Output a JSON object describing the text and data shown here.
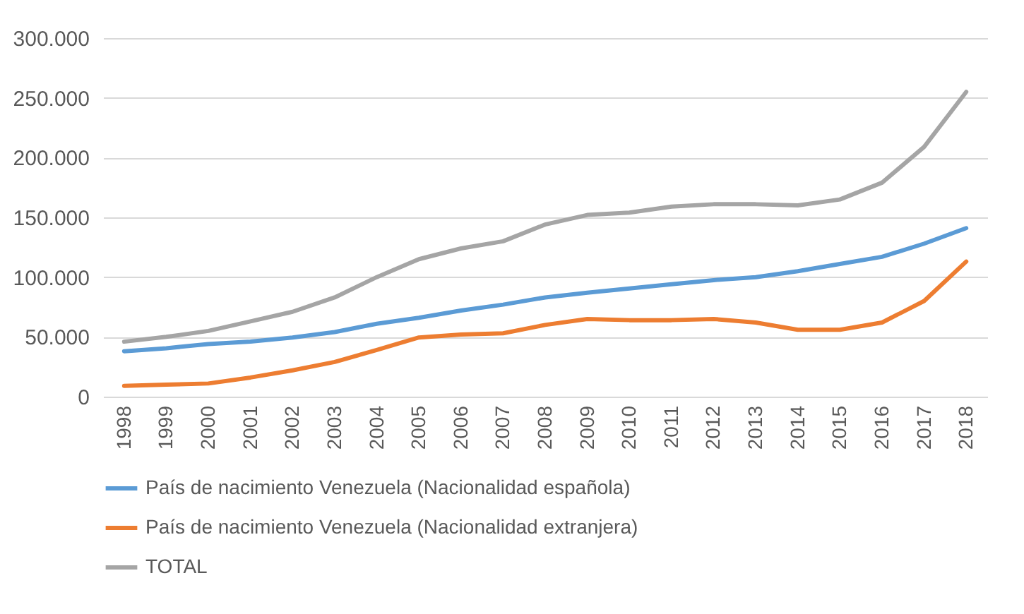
{
  "chart_data": {
    "type": "line",
    "categories": [
      "1998",
      "1999",
      "2000",
      "2001",
      "2002",
      "2003",
      "2004",
      "2005",
      "2006",
      "2007",
      "2008",
      "2009",
      "2010",
      "2011",
      "2012",
      "2013",
      "2014",
      "2015",
      "2016",
      "2017",
      "2018"
    ],
    "series": [
      {
        "name": "País de nacimiento Venezuela (Nacionalidad española)",
        "color": "#5b9bd5",
        "values": [
          38000,
          40500,
          44000,
          46000,
          49500,
          54000,
          61000,
          66000,
          72000,
          77000,
          83000,
          87000,
          90500,
          94000,
          97500,
          100000,
          105000,
          111000,
          117000,
          128000,
          141000
        ]
      },
      {
        "name": "País de nacimiento Venezuela (Nacionalidad extranjera)",
        "color": "#ed7d31",
        "values": [
          9000,
          10000,
          11000,
          16000,
          22000,
          29000,
          39000,
          49500,
          52000,
          53000,
          60000,
          65000,
          64000,
          64000,
          65000,
          62000,
          56000,
          56000,
          62000,
          80000,
          113000
        ]
      },
      {
        "name": "TOTAL",
        "color": "#a5a5a5",
        "values": [
          46000,
          50000,
          55000,
          63000,
          71000,
          83000,
          100000,
          115000,
          124000,
          130000,
          144000,
          152000,
          154000,
          159000,
          161000,
          161000,
          160000,
          165000,
          179000,
          209000,
          255000
        ]
      }
    ],
    "ylim": [
      0,
      300000
    ],
    "yticks": [
      {
        "value": 0,
        "label": "0"
      },
      {
        "value": 50000,
        "label": "50.000"
      },
      {
        "value": 100000,
        "label": "100.000"
      },
      {
        "value": 150000,
        "label": "150.000"
      },
      {
        "value": 200000,
        "label": "200.000"
      },
      {
        "value": 250000,
        "label": "250.000"
      },
      {
        "value": 300000,
        "label": "300.000"
      }
    ],
    "grid": "y",
    "legend": "bottom",
    "marker": "none",
    "line_style": "solid"
  }
}
